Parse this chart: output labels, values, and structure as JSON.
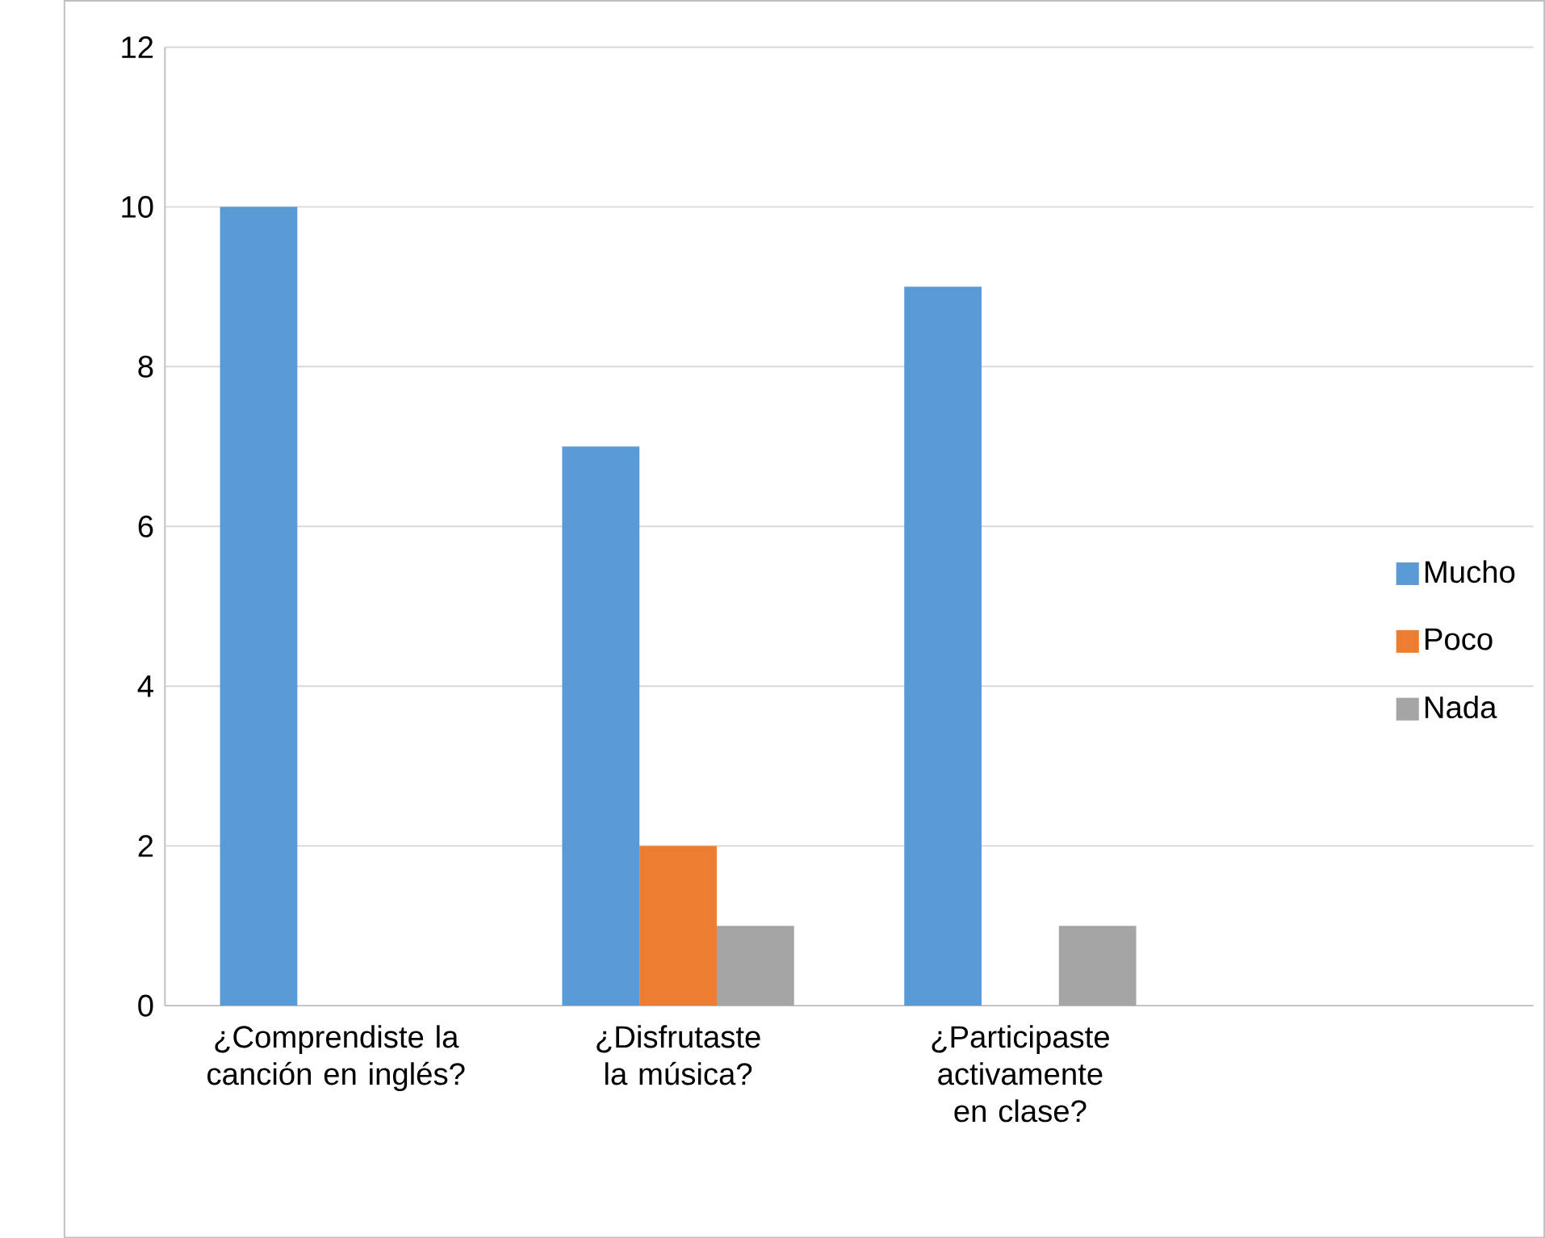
{
  "chart_data": {
    "type": "bar",
    "categories": [
      "¿Comprendiste la canción en inglés?",
      "¿Disfrutaste la música?",
      "¿Participaste activamente en clase?",
      null
    ],
    "series": [
      {
        "name": "Mucho",
        "color": "#5b9bd5",
        "values": [
          10,
          7,
          9,
          null
        ]
      },
      {
        "name": "Poco",
        "color": "#ed7d31",
        "values": [
          0,
          2,
          0,
          null
        ]
      },
      {
        "name": "Nada",
        "color": "#a5a5a5",
        "values": [
          0,
          1,
          1,
          null
        ]
      }
    ],
    "ylim": [
      0,
      12
    ],
    "yticks": [
      0,
      2,
      4,
      6,
      8,
      10,
      12
    ],
    "grid": "y",
    "legend": "right"
  }
}
